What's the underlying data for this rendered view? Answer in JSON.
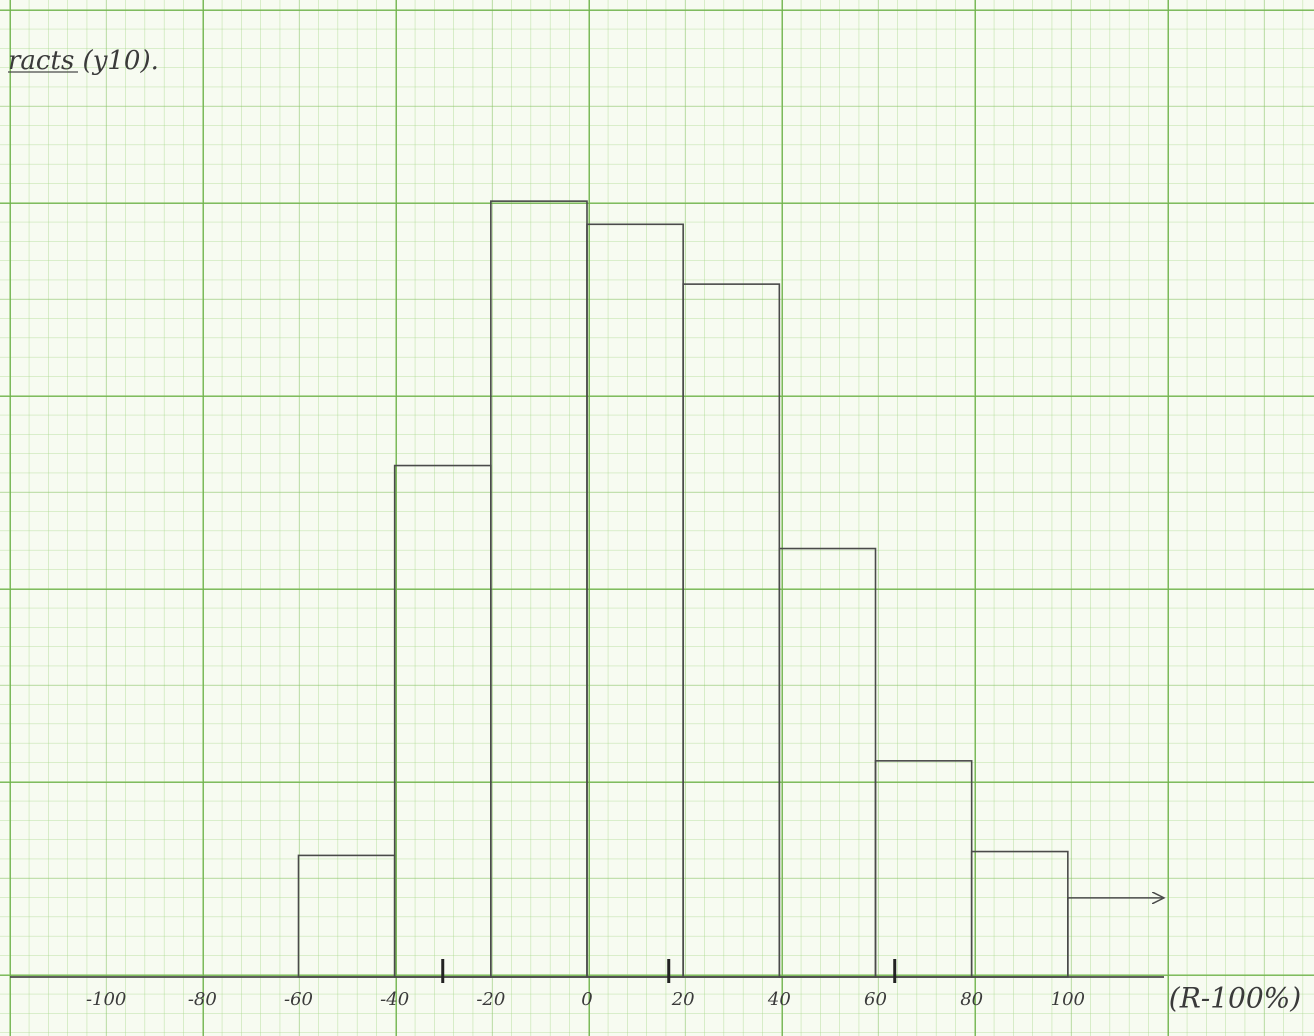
{
  "chart_data": {
    "type": "histogram",
    "title": "racts (y10).",
    "bins": [
      -60,
      -40,
      -20,
      0,
      20,
      40,
      60,
      80,
      100,
      120
    ],
    "values": [
      6.3,
      26.5,
      40.2,
      39,
      35.9,
      22.2,
      11.2,
      6.5,
      4.1
    ],
    "color": "#4a4a4a",
    "xlim": [
      -120,
      120
    ],
    "ylim": [
      0,
      50
    ],
    "xticks": [
      -100,
      -80,
      -60,
      -40,
      -20,
      0,
      20,
      40,
      60,
      80,
      100
    ],
    "xlabel": "(R-100%)",
    "markers": [
      -30,
      17,
      64
    ]
  }
}
